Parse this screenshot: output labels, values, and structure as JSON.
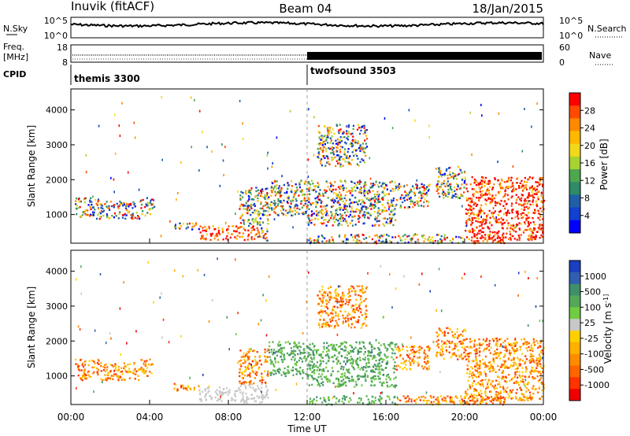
{
  "header": {
    "station": "Inuvik (fitACF)",
    "beam": "Beam 04",
    "date": "18/Jan/2015"
  },
  "panels": {
    "nsky": {
      "left_label": "N.Sky",
      "left_ticks": [
        "10^5",
        "10^0"
      ],
      "right_ticks": [
        "10^5",
        "10^0"
      ],
      "right_label": "N.Search"
    },
    "freq": {
      "left_label_1": "Freq.",
      "left_label_2": "[MHz]",
      "left_ticks": [
        "18",
        "8"
      ],
      "right_ticks": [
        "60",
        "0"
      ],
      "right_label": "Nave"
    },
    "cpid": {
      "label": "CPID",
      "programs": [
        {
          "name": "themis 3300",
          "start_hour": 0
        },
        {
          "name": "twofsound 3503",
          "start_hour": 12
        }
      ]
    }
  },
  "chart_data": [
    {
      "type": "heatmap",
      "name": "power",
      "xlabel": "",
      "ylabel": "Slant Range [km]",
      "xlim": [
        0,
        24
      ],
      "ylim": [
        180,
        4600
      ],
      "y_ticks": [
        1000,
        2000,
        3000,
        4000
      ],
      "x_ticks": [
        "00:00",
        "04:00",
        "08:00",
        "12:00",
        "16:00",
        "20:00",
        "00:00"
      ],
      "colorbar": {
        "label": "Power [dB]",
        "ticks": [
          "28",
          "24",
          "20",
          "16",
          "12",
          "8",
          "4"
        ],
        "colors": [
          "#ff0000",
          "#ff4a00",
          "#ff8a00",
          "#ffb800",
          "#f2d81a",
          "#a6d332",
          "#4ea64d",
          "#2f8a68",
          "#1f5fa6",
          "#1240d0",
          "#0000ff"
        ]
      }
    },
    {
      "type": "heatmap",
      "name": "velocity",
      "xlabel": "Time UT",
      "ylabel": "Slant Range [km]",
      "xlim": [
        0,
        24
      ],
      "ylim": [
        180,
        4600
      ],
      "y_ticks": [
        1000,
        2000,
        3000,
        4000
      ],
      "x_ticks": [
        "00:00",
        "04:00",
        "08:00",
        "12:00",
        "16:00",
        "20:00",
        "00:00"
      ],
      "colorbar": {
        "label": "Velocity [m s^-1]",
        "ticks": [
          "1000",
          "500",
          "100",
          "25",
          "-25",
          "-100",
          "-500",
          "-1000"
        ],
        "colors": [
          "#1a3fbf",
          "#2f5fae",
          "#3f8f6a",
          "#55a85a",
          "#70cc40",
          "#c8c8c8",
          "#ffd000",
          "#ffb000",
          "#ff8c00",
          "#ff6600",
          "#ff3300",
          "#ee0000"
        ]
      }
    }
  ],
  "colors": {
    "gray_fill": "#c8c8c8"
  }
}
